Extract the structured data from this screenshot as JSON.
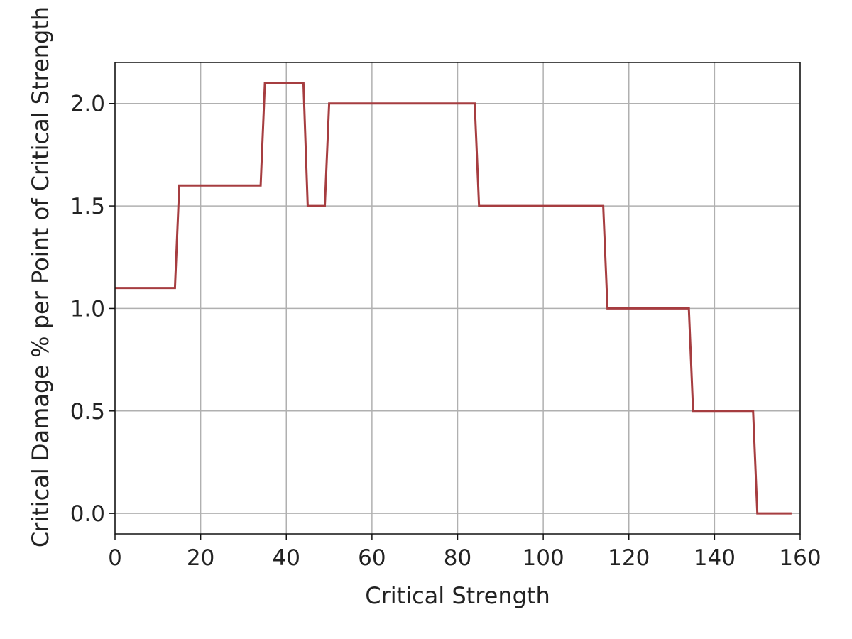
{
  "chart_data": {
    "type": "line",
    "title": "",
    "xlabel": "Critical Strength",
    "ylabel": "Critical Damage % per Point of Critical Strength",
    "xlim": [
      0,
      160
    ],
    "ylim": [
      -0.1,
      2.2
    ],
    "xticks": [
      "0",
      "20",
      "40",
      "60",
      "80",
      "100",
      "120",
      "140",
      "160"
    ],
    "yticks": [
      "0.0",
      "0.5",
      "1.0",
      "1.5",
      "2.0"
    ],
    "grid": true,
    "legend": "none",
    "series": [
      {
        "color": "#a63d40",
        "x": [
          0,
          14,
          15,
          34,
          35,
          44,
          45,
          49,
          50,
          84,
          85,
          114,
          115,
          134,
          135,
          149,
          150,
          158
        ],
        "y": [
          1.1,
          1.1,
          1.6,
          1.6,
          2.1,
          2.1,
          1.5,
          1.5,
          2.0,
          2.0,
          1.5,
          1.5,
          1.0,
          1.0,
          0.5,
          0.5,
          0.0,
          0.0
        ]
      }
    ]
  }
}
